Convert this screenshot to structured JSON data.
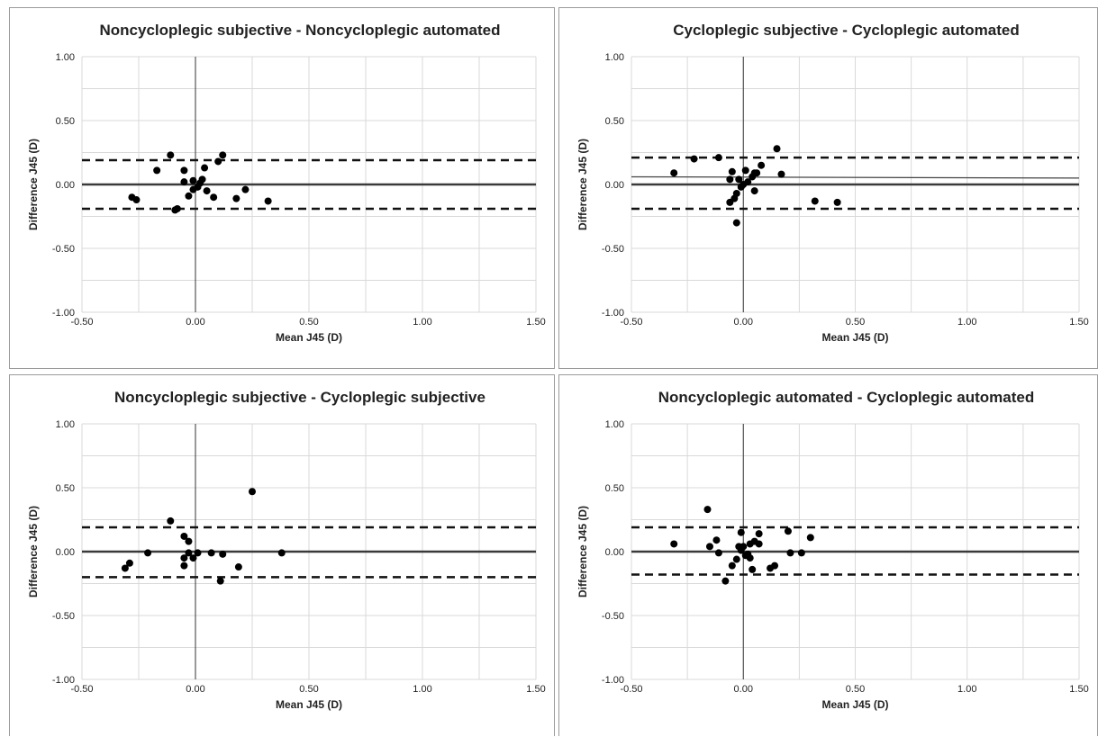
{
  "chart_data": [
    {
      "type": "scatter",
      "title": "Noncycloplegic subjective - Noncycloplegic automated",
      "xlabel": "Mean J45 (D)",
      "ylabel": "Difference J45 (D)",
      "xlim": [
        -0.5,
        1.5
      ],
      "ylim": [
        -1.0,
        1.0
      ],
      "xticks": [
        "-0.50",
        "0.00",
        "0.50",
        "1.00",
        "1.50"
      ],
      "yticks": [
        "-1.00",
        "-0.50",
        "0.00",
        "0.50",
        "1.00"
      ],
      "grid": true,
      "mean_difference": 0.0,
      "upper_loa": 0.19,
      "lower_loa": -0.19,
      "points": [
        [
          -0.28,
          -0.1
        ],
        [
          -0.26,
          -0.12
        ],
        [
          -0.17,
          0.11
        ],
        [
          -0.11,
          0.23
        ],
        [
          -0.08,
          -0.19
        ],
        [
          -0.09,
          -0.2
        ],
        [
          -0.05,
          0.11
        ],
        [
          -0.05,
          0.02
        ],
        [
          -0.03,
          -0.09
        ],
        [
          -0.01,
          0.03
        ],
        [
          -0.01,
          -0.04
        ],
        [
          0.01,
          -0.02
        ],
        [
          0.02,
          0.01
        ],
        [
          0.03,
          0.04
        ],
        [
          0.04,
          0.13
        ],
        [
          0.05,
          -0.05
        ],
        [
          0.08,
          -0.1
        ],
        [
          0.1,
          0.18
        ],
        [
          0.12,
          0.23
        ],
        [
          0.18,
          -0.11
        ],
        [
          0.22,
          -0.04
        ],
        [
          0.32,
          -0.13
        ]
      ]
    },
    {
      "type": "scatter",
      "title": "Cycloplegic subjective - Cycloplegic automated",
      "xlabel": "Mean J45 (D)",
      "ylabel": "Difference J45 (D)",
      "xlim": [
        -0.5,
        1.5
      ],
      "ylim": [
        -1.0,
        1.0
      ],
      "xticks": [
        "-0.50",
        "0.00",
        "0.50",
        "1.00",
        "1.50"
      ],
      "yticks": [
        "-1.00",
        "-0.50",
        "0.00",
        "0.50",
        "1.00"
      ],
      "grid": true,
      "mean_difference": 0.0,
      "upper_loa": 0.21,
      "lower_loa": -0.19,
      "trend_line": [
        [
          -0.5,
          0.06
        ],
        [
          1.5,
          0.05
        ]
      ],
      "points": [
        [
          -0.31,
          0.09
        ],
        [
          -0.22,
          0.2
        ],
        [
          -0.11,
          0.21
        ],
        [
          -0.06,
          0.04
        ],
        [
          -0.06,
          -0.14
        ],
        [
          -0.05,
          0.1
        ],
        [
          -0.04,
          -0.11
        ],
        [
          -0.03,
          -0.3
        ],
        [
          -0.03,
          -0.07
        ],
        [
          -0.02,
          0.04
        ],
        [
          -0.01,
          -0.02
        ],
        [
          0.0,
          0.0
        ],
        [
          0.01,
          0.11
        ],
        [
          0.02,
          0.02
        ],
        [
          0.04,
          0.06
        ],
        [
          0.05,
          0.09
        ],
        [
          0.05,
          -0.05
        ],
        [
          0.06,
          0.09
        ],
        [
          0.08,
          0.15
        ],
        [
          0.15,
          0.28
        ],
        [
          0.17,
          0.08
        ],
        [
          0.32,
          -0.13
        ],
        [
          0.42,
          -0.14
        ]
      ]
    },
    {
      "type": "scatter",
      "title": "Noncycloplegic subjective - Cycloplegic subjective",
      "xlabel": "Mean J45 (D)",
      "ylabel": "Difference J45 (D)",
      "xlim": [
        -0.5,
        1.5
      ],
      "ylim": [
        -1.0,
        1.0
      ],
      "xticks": [
        "-0.50",
        "0.00",
        "0.50",
        "1.00",
        "1.50"
      ],
      "yticks": [
        "-1.00",
        "-0.50",
        "0.00",
        "0.50",
        "1.00"
      ],
      "grid": true,
      "mean_difference": 0.0,
      "upper_loa": 0.19,
      "lower_loa": -0.2,
      "points": [
        [
          -0.31,
          -0.13
        ],
        [
          -0.29,
          -0.09
        ],
        [
          -0.21,
          -0.01
        ],
        [
          -0.11,
          0.24
        ],
        [
          -0.05,
          0.12
        ],
        [
          -0.05,
          -0.05
        ],
        [
          -0.05,
          -0.11
        ],
        [
          -0.03,
          0.08
        ],
        [
          -0.03,
          -0.01
        ],
        [
          -0.01,
          -0.05
        ],
        [
          0.01,
          -0.01
        ],
        [
          0.07,
          -0.01
        ],
        [
          0.11,
          -0.23
        ],
        [
          0.12,
          -0.02
        ],
        [
          0.19,
          -0.12
        ],
        [
          0.25,
          0.47
        ],
        [
          0.38,
          -0.01
        ]
      ]
    },
    {
      "type": "scatter",
      "title": "Noncycloplegic automated - Cycloplegic automated",
      "xlabel": "Mean J45 (D)",
      "ylabel": "Difference J45 (D)",
      "xlim": [
        -0.5,
        1.5
      ],
      "ylim": [
        -1.0,
        1.0
      ],
      "xticks": [
        "-0.50",
        "0.00",
        "0.50",
        "1.00",
        "1.50"
      ],
      "yticks": [
        "-1.00",
        "-0.50",
        "0.00",
        "0.50",
        "1.00"
      ],
      "grid": true,
      "mean_difference": 0.0,
      "upper_loa": 0.19,
      "lower_loa": -0.18,
      "points": [
        [
          -0.31,
          0.06
        ],
        [
          -0.16,
          0.33
        ],
        [
          -0.15,
          0.04
        ],
        [
          -0.12,
          0.09
        ],
        [
          -0.11,
          -0.01
        ],
        [
          -0.08,
          -0.23
        ],
        [
          -0.05,
          -0.11
        ],
        [
          -0.03,
          -0.06
        ],
        [
          -0.02,
          0.04
        ],
        [
          -0.01,
          0.15
        ],
        [
          -0.01,
          0.01
        ],
        [
          0.0,
          0.04
        ],
        [
          0.01,
          -0.03
        ],
        [
          0.02,
          -0.02
        ],
        [
          0.03,
          -0.05
        ],
        [
          0.03,
          0.06
        ],
        [
          0.04,
          -0.14
        ],
        [
          0.05,
          0.08
        ],
        [
          0.07,
          0.14
        ],
        [
          0.07,
          0.06
        ],
        [
          0.12,
          -0.13
        ],
        [
          0.14,
          -0.11
        ],
        [
          0.2,
          0.16
        ],
        [
          0.21,
          -0.01
        ],
        [
          0.26,
          -0.01
        ],
        [
          0.3,
          0.11
        ]
      ]
    }
  ]
}
